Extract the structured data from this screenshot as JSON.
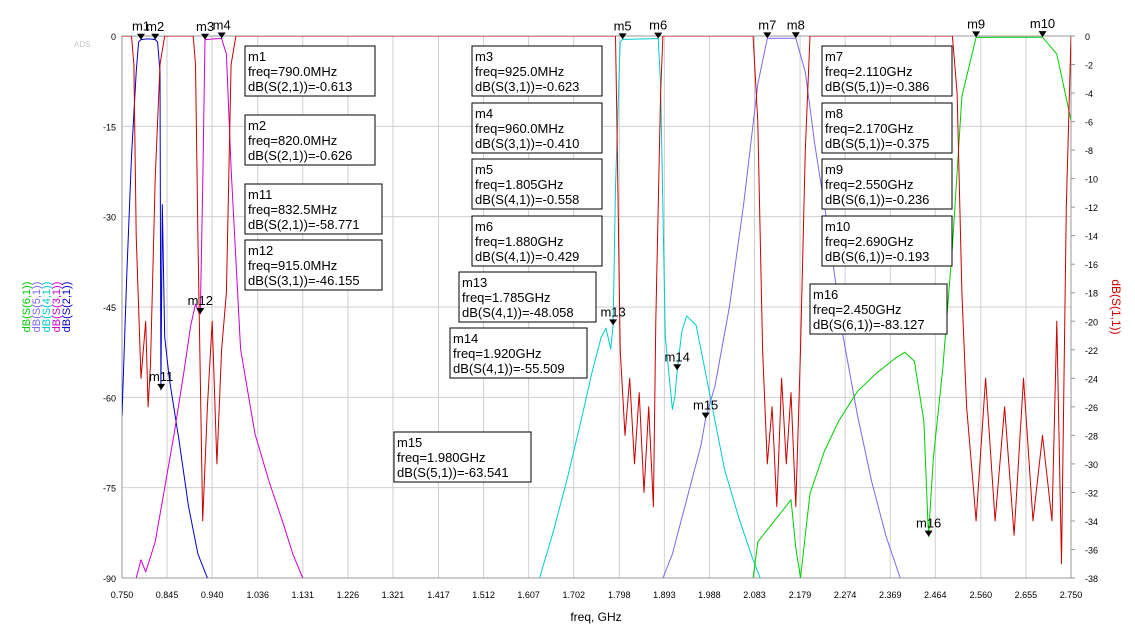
{
  "chart_data": {
    "type": "line",
    "watermark": "ADS",
    "xlabel": "freq, GHz",
    "xlim": [
      0.75,
      2.75
    ],
    "x_ticks": [
      "0.750",
      "0.845",
      "0.940",
      "1.036",
      "1.131",
      "1.226",
      "1.321",
      "1.417",
      "1.512",
      "1.607",
      "1.702",
      "1.798",
      "1.893",
      "1.988",
      "2.083",
      "2.179",
      "2.274",
      "2.369",
      "2.464",
      "2.560",
      "2.655",
      "2.750"
    ],
    "y_left": {
      "ylim": [
        -90,
        0
      ],
      "ticks": [
        0,
        -15,
        -30,
        -45,
        -60,
        -75,
        -90
      ],
      "labels": [
        {
          "text": "dB(S(6,1))",
          "color": "#00cc00"
        },
        {
          "text": "dB(S(5,1))",
          "color": "#7b68ee"
        },
        {
          "text": "dB(S(4,1))",
          "color": "#00cccc"
        },
        {
          "text": "dB(S(3,1))",
          "color": "#cc00cc"
        },
        {
          "text": "dB(S(2,1))",
          "color": "#0000cc"
        }
      ]
    },
    "y_right": {
      "label": "dB(S(1,1))",
      "color": "#cc0000",
      "ylim": [
        -38,
        0
      ],
      "ticks": [
        0,
        -2,
        -4,
        -6,
        -8,
        -10,
        -12,
        -14,
        -16,
        -18,
        -20,
        -22,
        -24,
        -26,
        -28,
        -30,
        -32,
        -34,
        -36,
        -38
      ]
    },
    "series": [
      {
        "key": "s21",
        "color": "#0000cc",
        "axis": "left",
        "x": [
          0.75,
          0.76,
          0.77,
          0.78,
          0.785,
          0.79,
          0.8,
          0.81,
          0.82,
          0.825,
          0.83,
          0.832,
          0.835,
          0.84,
          0.85,
          0.87,
          0.89,
          0.91,
          0.93
        ],
        "y": [
          -63,
          -40,
          -20,
          -6,
          -1,
          -0.6,
          -0.5,
          -0.5,
          -0.6,
          -1,
          -6,
          -58.771,
          -28,
          -50,
          -57,
          -67,
          -78,
          -86,
          -90
        ]
      },
      {
        "key": "s31",
        "color": "#cc00cc",
        "axis": "left",
        "x": [
          0.78,
          0.79,
          0.8,
          0.82,
          0.84,
          0.86,
          0.88,
          0.895,
          0.905,
          0.912,
          0.915,
          0.92,
          0.925,
          0.94,
          0.96,
          0.97,
          0.98,
          1.0,
          1.03,
          1.06,
          1.09,
          1.11,
          1.131
        ],
        "y": [
          -90,
          -87,
          -89,
          -84,
          -75,
          -66,
          -56,
          -48,
          -44.5,
          -46,
          -46.155,
          -25,
          -0.623,
          -0.5,
          -0.41,
          -3,
          -22,
          -52,
          -66,
          -74,
          -81,
          -86,
          -90
        ]
      },
      {
        "key": "s41",
        "color": "#00cccc",
        "axis": "left",
        "x": [
          1.63,
          1.66,
          1.69,
          1.72,
          1.74,
          1.76,
          1.77,
          1.78,
          1.785,
          1.79,
          1.8,
          1.805,
          1.84,
          1.88,
          1.885,
          1.895,
          1.91,
          1.915,
          1.92,
          1.93,
          1.94,
          1.96,
          1.99,
          2.02,
          2.05,
          2.08,
          2.095
        ],
        "y": [
          -90,
          -82,
          -73,
          -63,
          -56,
          -50,
          -48.5,
          -52,
          -48.058,
          -25,
          -1,
          -0.558,
          -0.5,
          -0.429,
          -8,
          -50,
          -62,
          -60,
          -55.509,
          -49,
          -46.5,
          -48,
          -60,
          -72,
          -80,
          -87,
          -90
        ]
      },
      {
        "key": "s51",
        "color": "#7b68ee",
        "axis": "left",
        "x": [
          1.89,
          1.91,
          1.93,
          1.95,
          1.97,
          1.98,
          2.0,
          2.03,
          2.06,
          2.09,
          2.11,
          2.17,
          2.19,
          2.21,
          2.24,
          2.27,
          2.3,
          2.33,
          2.36,
          2.39
        ],
        "y": [
          -90,
          -86,
          -80,
          -74,
          -68,
          -63.541,
          -58,
          -45,
          -28,
          -8,
          -0.386,
          -0.375,
          -6,
          -18,
          -33,
          -50,
          -63,
          -74,
          -83,
          -90
        ]
      },
      {
        "key": "s61",
        "color": "#00cc00",
        "axis": "left",
        "x": [
          2.08,
          2.09,
          2.11,
          2.13,
          2.15,
          2.16,
          2.17,
          2.18,
          2.2,
          2.23,
          2.26,
          2.3,
          2.34,
          2.38,
          2.4,
          2.42,
          2.44,
          2.448,
          2.45,
          2.452,
          2.46,
          2.48,
          2.5,
          2.52,
          2.55,
          2.6,
          2.65,
          2.69,
          2.72,
          2.75
        ],
        "y": [
          -90,
          -84,
          -82,
          -80,
          -78,
          -77,
          -85,
          -90,
          -76,
          -69,
          -64,
          -59,
          -56,
          -53.5,
          -52.5,
          -54,
          -64,
          -80,
          -83.127,
          -80,
          -70,
          -55,
          -35,
          -10,
          -0.236,
          -0.2,
          -0.2,
          -0.193,
          -3,
          -14
        ]
      },
      {
        "key": "s11",
        "color": "#cc0000",
        "axis": "right",
        "x": [
          0.75,
          0.77,
          0.775,
          0.78,
          0.79,
          0.8,
          0.805,
          0.81,
          0.82,
          0.83,
          0.84,
          0.85,
          0.9,
          0.905,
          0.91,
          0.92,
          0.93,
          0.94,
          0.95,
          0.96,
          0.97,
          0.98,
          0.99,
          1.5,
          1.79,
          1.793,
          1.8,
          1.81,
          1.82,
          1.83,
          1.84,
          1.85,
          1.86,
          1.87,
          1.875,
          1.885,
          1.89,
          1.9,
          2.08,
          2.09,
          2.1,
          2.11,
          2.12,
          2.13,
          2.14,
          2.15,
          2.16,
          2.17,
          2.18,
          2.19,
          2.2,
          2.5,
          2.51,
          2.52,
          2.53,
          2.54,
          2.55,
          2.57,
          2.59,
          2.61,
          2.63,
          2.65,
          2.67,
          2.69,
          2.71,
          2.72,
          2.73,
          2.74,
          2.75
        ],
        "y": [
          0,
          0,
          -2,
          -14,
          -24,
          -20,
          -26,
          -23,
          -10,
          -2,
          0,
          0,
          0,
          -2,
          -14,
          -34,
          -26,
          -20,
          -30,
          -22,
          -18,
          -2,
          0,
          0,
          0,
          -6,
          -22,
          -28,
          -24,
          -30,
          -25,
          -32,
          -26,
          -33,
          -20,
          -4,
          0,
          0,
          0,
          -6,
          -22,
          -30,
          -26,
          -33,
          -24,
          -30,
          -25,
          -33,
          -22,
          -8,
          0,
          0,
          -4,
          -18,
          -26,
          -30,
          -34,
          -24,
          -34,
          -26,
          -35,
          -24,
          -34,
          -28,
          -34,
          -20,
          -37,
          -12,
          0
        ]
      }
    ],
    "markers": [
      {
        "name": "m1",
        "series": "s21",
        "x": 0.79,
        "y": -0.613,
        "freq": "790.0MHz",
        "quantity": "dB(S(2,1))",
        "value": "-0.613"
      },
      {
        "name": "m2",
        "series": "s21",
        "x": 0.82,
        "y": -0.626,
        "freq": "820.0MHz",
        "quantity": "dB(S(2,1))",
        "value": "-0.626"
      },
      {
        "name": "m3",
        "series": "s31",
        "x": 0.925,
        "y": -0.623,
        "freq": "925.0MHz",
        "quantity": "dB(S(3,1))",
        "value": "-0.623"
      },
      {
        "name": "m4",
        "series": "s31",
        "x": 0.96,
        "y": -0.41,
        "freq": "960.0MHz",
        "quantity": "dB(S(3,1))",
        "value": "-0.410"
      },
      {
        "name": "m5",
        "series": "s41",
        "x": 1.805,
        "y": -0.558,
        "freq": "1.805GHz",
        "quantity": "dB(S(4,1))",
        "value": "-0.558"
      },
      {
        "name": "m6",
        "series": "s41",
        "x": 1.88,
        "y": -0.429,
        "freq": "1.880GHz",
        "quantity": "dB(S(4,1))",
        "value": "-0.429"
      },
      {
        "name": "m7",
        "series": "s51",
        "x": 2.11,
        "y": -0.386,
        "freq": "2.110GHz",
        "quantity": "dB(S(5,1))",
        "value": "-0.386"
      },
      {
        "name": "m8",
        "series": "s51",
        "x": 2.17,
        "y": -0.375,
        "freq": "2.170GHz",
        "quantity": "dB(S(5,1))",
        "value": "-0.375"
      },
      {
        "name": "m9",
        "series": "s61",
        "x": 2.55,
        "y": -0.236,
        "freq": "2.550GHz",
        "quantity": "dB(S(6,1))",
        "value": "-0.236"
      },
      {
        "name": "m10",
        "series": "s61",
        "x": 2.69,
        "y": -0.193,
        "freq": "2.690GHz",
        "quantity": "dB(S(6,1))",
        "value": "-0.193"
      },
      {
        "name": "m11",
        "series": "s21",
        "x": 0.8325,
        "y": -58.771,
        "freq": "832.5MHz",
        "quantity": "dB(S(2,1))",
        "value": "-58.771"
      },
      {
        "name": "m12",
        "series": "s31",
        "x": 0.915,
        "y": -46.155,
        "freq": "915.0MHz",
        "quantity": "dB(S(3,1))",
        "value": "-46.155"
      },
      {
        "name": "m13",
        "series": "s41",
        "x": 1.785,
        "y": -48.058,
        "freq": "1.785GHz",
        "quantity": "dB(S(4,1))",
        "value": "-48.058"
      },
      {
        "name": "m14",
        "series": "s41",
        "x": 1.92,
        "y": -55.509,
        "freq": "1.920GHz",
        "quantity": "dB(S(4,1))",
        "value": "-55.509"
      },
      {
        "name": "m15",
        "series": "s51",
        "x": 1.98,
        "y": -63.541,
        "freq": "1.980GHz",
        "quantity": "dB(S(5,1))",
        "value": "-63.541"
      },
      {
        "name": "m16",
        "series": "s61",
        "x": 2.45,
        "y": -83.127,
        "freq": "2.450GHz",
        "quantity": "dB(S(6,1))",
        "value": "-83.127"
      }
    ]
  }
}
